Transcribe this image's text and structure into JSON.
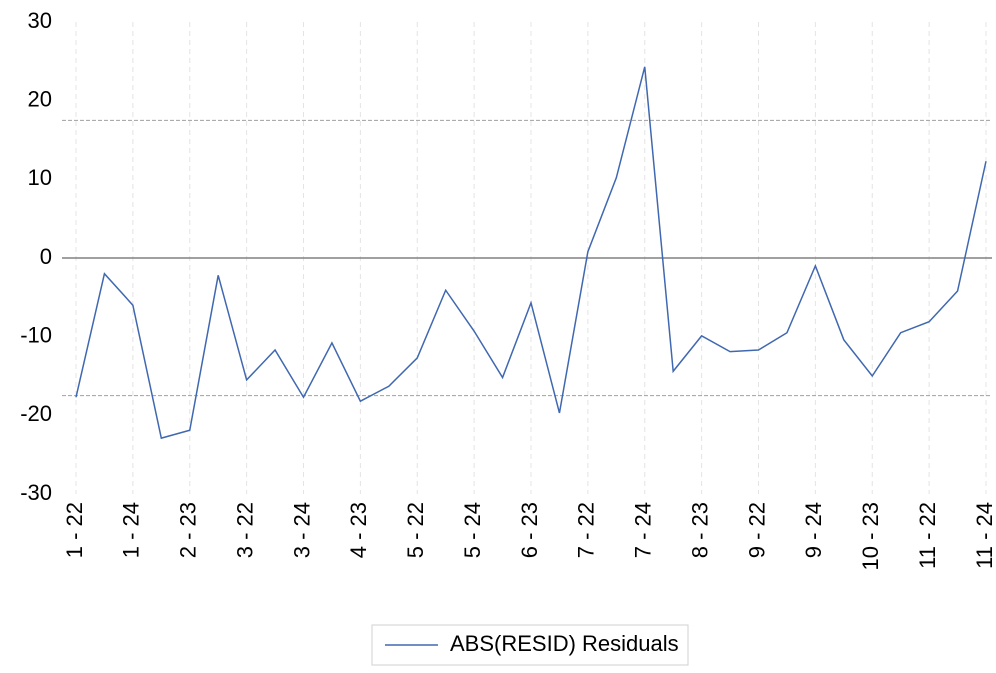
{
  "chart_data": {
    "type": "line",
    "categories": [
      "1 - 22",
      null,
      "1 - 24",
      null,
      "2 - 23",
      null,
      "3 - 22",
      null,
      "3 - 24",
      null,
      "4 - 23",
      null,
      "5 - 22",
      null,
      "5 - 24",
      null,
      "6 - 23",
      null,
      "7 - 22",
      null,
      "7 - 24",
      null,
      "8 - 23",
      null,
      "9 - 22",
      null,
      "9 - 24",
      null,
      "10 - 23",
      null,
      "11 - 22",
      null,
      "11 - 24"
    ],
    "series": [
      {
        "name": "ABS(RESID) Residuals",
        "color": "#4068b0",
        "values": [
          -17.7,
          -2.0,
          -6.0,
          -22.9,
          -21.9,
          -2.2,
          -15.5,
          -11.7,
          -17.7,
          -10.8,
          -18.2,
          -16.3,
          -12.7,
          -4.1,
          -9.3,
          -15.2,
          -5.7,
          -19.7,
          0.8,
          10.2,
          24.3,
          -14.4,
          -9.9,
          -11.9,
          -11.7,
          -9.5,
          -1.0,
          -10.4,
          -15.0,
          -9.5,
          -8.1,
          -4.2,
          12.3
        ]
      }
    ],
    "ylim": [
      -30,
      30
    ],
    "yticks": [
      -30,
      -20,
      -10,
      0,
      10,
      20,
      30
    ],
    "reference_lines": [
      17.5,
      -17.5
    ],
    "grid": true,
    "legend": "bottom"
  }
}
